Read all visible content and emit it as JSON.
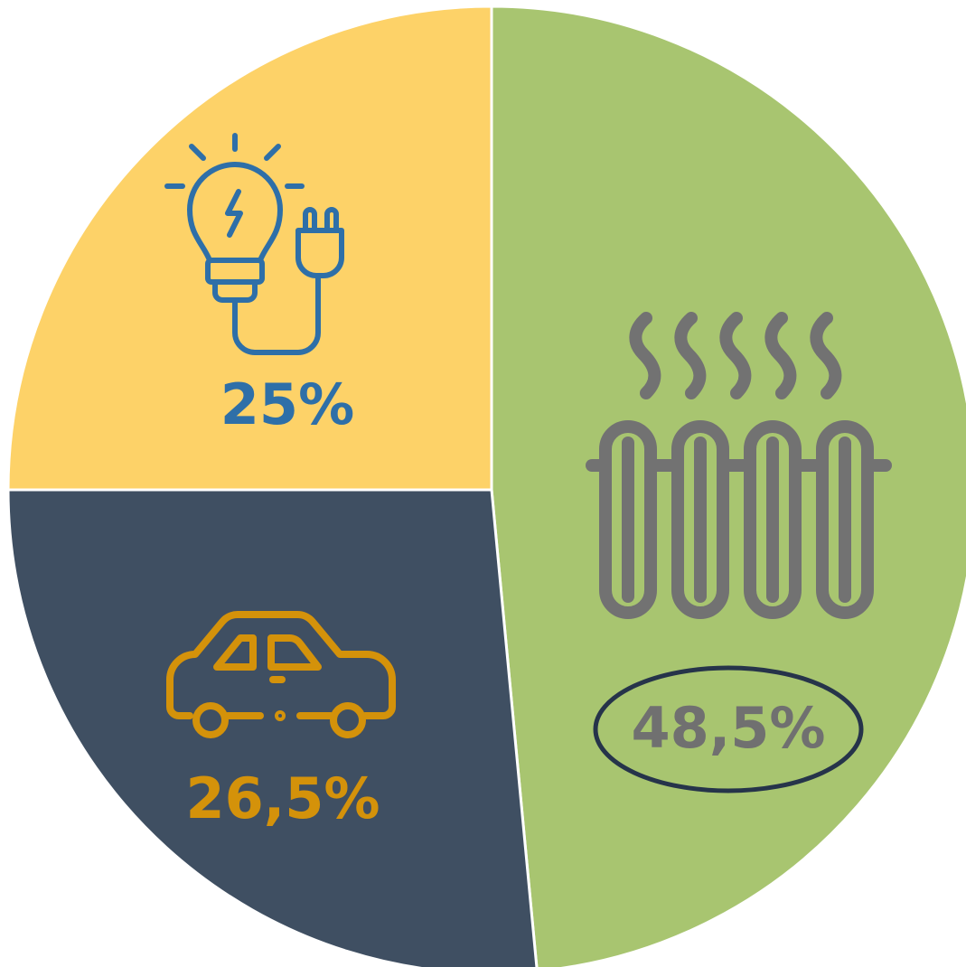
{
  "chart_data": {
    "type": "pie",
    "values": [
      48.5,
      26.5,
      25
    ],
    "value_labels": [
      "48,5%",
      "26,5%",
      "25%"
    ],
    "colors": [
      "#a8c570",
      "#3f4f62",
      "#fdd268"
    ],
    "label_colors": [
      "#707070",
      "#d4920a",
      "#2e6fa8"
    ]
  }
}
